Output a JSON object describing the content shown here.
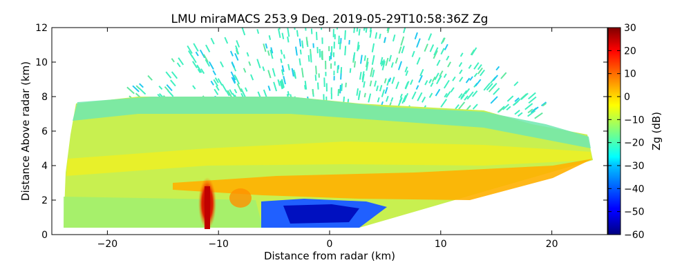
{
  "chart_data": {
    "type": "heatmap",
    "title": "LMU miraMACS 253.9 Deg. 2019-05-29T10:58:36Z  Zg",
    "xlabel": "Distance from radar (km)",
    "ylabel": "Distance Above radar  (km)",
    "xlim": [
      -25,
      25
    ],
    "ylim": [
      0,
      12
    ],
    "x_ticks": [
      -20,
      -10,
      0,
      10,
      20
    ],
    "y_ticks": [
      0,
      2,
      4,
      6,
      8,
      10,
      12
    ],
    "colorbar": {
      "label": "Zg (dB)",
      "range": [
        -60,
        30
      ],
      "ticks": [
        30,
        20,
        10,
        0,
        -10,
        -20,
        -30,
        -40,
        -50,
        -60
      ],
      "colormap": "jet"
    },
    "features": [
      {
        "name": "main-cloud-layer",
        "x_range": [
          -24,
          24
        ],
        "z_range": [
          0.5,
          8
        ],
        "typical_dB": -10
      },
      {
        "name": "melting-band",
        "x_range": [
          -14,
          24
        ],
        "z_range": [
          2.2,
          3.5
        ],
        "typical_dB": 5
      },
      {
        "name": "strong-core",
        "x": -11,
        "z_range": [
          0.2,
          3
        ],
        "max_dB": 25
      },
      {
        "name": "clear-air-noise",
        "z_range": [
          6,
          12
        ],
        "typical_dB": -28
      },
      {
        "name": "low-reflectivity-region",
        "x_range": [
          -7,
          4
        ],
        "z_range": [
          0,
          2
        ],
        "typical_dB": -48
      }
    ]
  }
}
